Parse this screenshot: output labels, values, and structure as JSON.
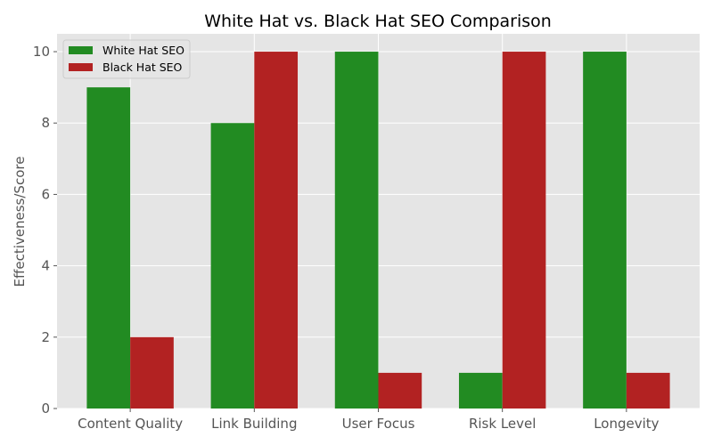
{
  "chart_data": {
    "type": "bar",
    "title": "White Hat vs. Black Hat SEO Comparison",
    "xlabel": "",
    "ylabel": "Effectiveness/Score",
    "categories": [
      "Content Quality",
      "Link Building",
      "User Focus",
      "Risk Level",
      "Longevity"
    ],
    "series": [
      {
        "name": "White Hat SEO",
        "values": [
          9,
          8,
          10,
          1,
          10
        ],
        "color": "#228b22"
      },
      {
        "name": "Black Hat SEO",
        "values": [
          2,
          10,
          1,
          10,
          1
        ],
        "color": "#b22222"
      }
    ],
    "ylim": [
      0,
      10.5
    ],
    "yticks": [
      0,
      2,
      4,
      6,
      8,
      10
    ],
    "grid": true,
    "background": "#e5e5e5",
    "legend_position": "top-left"
  }
}
